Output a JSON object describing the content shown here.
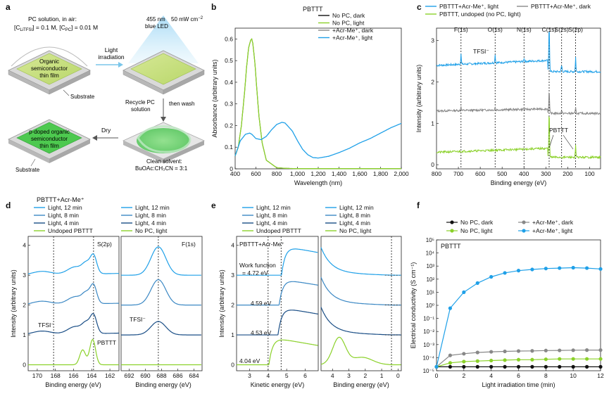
{
  "colors": {
    "light_blue": "#1fa0e8",
    "mid_blue": "#3b88c4",
    "dark_blue": "#1a4e86",
    "green": "#8bd12a",
    "gray": "#888888",
    "black": "#111111"
  },
  "panel_a": {
    "label": "a",
    "pc_solution": "PC solution, in air:",
    "pc_conc_1": "[C",
    "pc_conc_1_sub": "LiTFSI",
    "pc_conc_2": "] = 0.1 M, [C",
    "pc_conc_2_sub": "PC",
    "pc_conc_3": "] = 0.01 M",
    "led_1": "455 nm",
    "led_2": "blue LED",
    "power": "50 mW cm",
    "power_sup": "−2",
    "film_1": "Organic",
    "film_2": "semiconductor",
    "film_3": "thin film",
    "substrate": "Substrate",
    "light_1": "Light",
    "light_2": "irradiation",
    "recycle_1": "Recycle PC",
    "recycle_2": "solution",
    "then_wash": "then wash",
    "dry": "Dry",
    "pdoped_1": "p-doped organic",
    "pdoped_2": "semiconductor",
    "pdoped_3": "thin film",
    "clean_1": "Clean solvent:",
    "clean_2": "BuOAc:CH₃CN = 3:1",
    "substrate2": "Substrate"
  },
  "chart_data": [
    {
      "id": "b",
      "type": "line",
      "panel": "b",
      "title": "PBTTT",
      "xlabel": "Wavelength (nm)",
      "ylabel": "Absorbance (arbitrary units)",
      "xlim": [
        400,
        2000
      ],
      "ylim": [
        0,
        0.65
      ],
      "xticks": [
        "400",
        "600",
        "800",
        "1,000",
        "1,200",
        "1,400",
        "1,600",
        "1,800",
        "2,000"
      ],
      "yticks": [
        "0",
        "0.1",
        "0.2",
        "0.3",
        "0.4",
        "0.5",
        "0.6"
      ],
      "legend": [
        {
          "name": "No PC, dark",
          "color": "#111111"
        },
        {
          "name": "No PC, light",
          "color": "#8bd12a"
        },
        {
          "name": "+Acr-Me⁺, dark",
          "color": "#888888"
        },
        {
          "name": "+Acr-Me⁺, light",
          "color": "#1fa0e8"
        }
      ],
      "series": [
        {
          "name": "undoped",
          "color": "#8bd12a",
          "x": [
            400,
            430,
            460,
            490,
            510,
            530,
            550,
            560,
            570,
            590,
            610,
            630,
            660,
            700,
            800,
            900,
            1000,
            1200,
            1600,
            2000
          ],
          "y": [
            0.06,
            0.1,
            0.2,
            0.35,
            0.47,
            0.56,
            0.595,
            0.6,
            0.58,
            0.49,
            0.36,
            0.24,
            0.12,
            0.04,
            0.005,
            0.002,
            0.001,
            0.001,
            0.001,
            0.001
          ]
        },
        {
          "name": "+Acr-Me⁺, light",
          "color": "#1fa0e8",
          "x": [
            400,
            450,
            500,
            540,
            560,
            580,
            600,
            650,
            700,
            750,
            800,
            850,
            880,
            950,
            1000,
            1050,
            1100,
            1150,
            1200,
            1300,
            1400,
            1500,
            1600,
            1700,
            1800,
            1900,
            2000
          ],
          "y": [
            0.06,
            0.13,
            0.16,
            0.165,
            0.16,
            0.15,
            0.14,
            0.135,
            0.15,
            0.18,
            0.205,
            0.215,
            0.212,
            0.175,
            0.13,
            0.09,
            0.065,
            0.052,
            0.05,
            0.058,
            0.075,
            0.095,
            0.12,
            0.14,
            0.165,
            0.19,
            0.21
          ]
        }
      ]
    },
    {
      "id": "c",
      "type": "line",
      "panel": "c",
      "xlabel": "Binding energy (eV)",
      "ylabel": "Intensity (arbitrary units)",
      "xlim": [
        800,
        50
      ],
      "ylim": [
        -0.1,
        3.3
      ],
      "xticks": [
        "800",
        "700",
        "600",
        "500",
        "400",
        "300",
        "200",
        "100"
      ],
      "yticks": [
        "0",
        "1",
        "2",
        "3"
      ],
      "peak_labels": [
        "F(1s)",
        "O(1s)",
        "N(1s)",
        "C(1s)",
        "S(2s)",
        "S(2p)"
      ],
      "peak_positions": [
        688,
        532,
        400,
        285,
        228,
        164
      ],
      "annotations": {
        "tfsi": "TFSI⁻",
        "pbttt": "PBTTT"
      },
      "legend": [
        {
          "name": "PBTTT+Acr-Me⁺, light",
          "color": "#1fa0e8"
        },
        {
          "name": "PBTTT+Acr-Me⁺, dark",
          "color": "#888888"
        },
        {
          "name": "PBTTT, undoped (no PC, light)",
          "color": "#8bd12a"
        }
      ],
      "series": [
        {
          "name": "light",
          "color": "#1fa0e8",
          "offset": 2.4
        },
        {
          "name": "dark",
          "color": "#888888",
          "offset": 1.3
        },
        {
          "name": "undoped",
          "color": "#8bd12a",
          "offset": 0.3
        }
      ]
    },
    {
      "id": "d",
      "type": "line",
      "panel": "d",
      "subtitle": "PBTTT+Acr-Me⁺",
      "xlabel": "Binding energy (eV)",
      "ylabel": "Intensity (arbitrary units)",
      "ylim": [
        -0.2,
        4.3
      ],
      "yticks": [
        "0",
        "1",
        "2",
        "3",
        "4"
      ],
      "left_title": "S(2p)",
      "left_xlim": [
        171,
        161
      ],
      "left_xticks": [
        "170",
        "168",
        "166",
        "164",
        "162"
      ],
      "right_title": "F(1s)",
      "right_xlim": [
        693,
        683
      ],
      "right_xticks": [
        "692",
        "690",
        "688",
        "686",
        "684"
      ],
      "annotations": {
        "tfsi": "TFSI⁻",
        "tfsi2": "TFSI⁻",
        "pbttt": "PBTTT"
      },
      "legend_left": [
        {
          "name": "Light, 12 min",
          "color": "#1fa0e8"
        },
        {
          "name": "Light, 8 min",
          "color": "#3b88c4"
        },
        {
          "name": "Light, 4 min",
          "color": "#1a4e86"
        },
        {
          "name": "Undoped PBTTT",
          "color": "#8bd12a"
        }
      ],
      "legend_right": [
        {
          "name": "Light, 12 min",
          "color": "#1fa0e8"
        },
        {
          "name": "Light, 8 min",
          "color": "#3b88c4"
        },
        {
          "name": "Light, 4 min",
          "color": "#1a4e86"
        },
        {
          "name": "No PC, light",
          "color": "#8bd12a"
        }
      ]
    },
    {
      "id": "e",
      "type": "line",
      "panel": "e",
      "subtitle": "PBTTT+Acr-Me⁺",
      "ylabel": "Intensity (arbitrary units)",
      "ylim": [
        -0.2,
        4.3
      ],
      "yticks": [
        "0",
        "1",
        "2",
        "3",
        "4"
      ],
      "left_xlabel": "Kinetic energy (eV)",
      "left_xlim": [
        2.3,
        6.7
      ],
      "left_xticks": [
        "3",
        "4",
        "5",
        "6"
      ],
      "right_xlabel": "Binding energy (eV)",
      "right_xlim": [
        4.7,
        -0.2
      ],
      "right_xticks": [
        "4",
        "3",
        "2",
        "1",
        "0"
      ],
      "work_function_label": "Work function",
      "work_functions": [
        "= 4.72 eV",
        "4.59 eV",
        "4.53 eV",
        "4.04 eV"
      ],
      "legend_left": [
        {
          "name": "Light, 12 min",
          "color": "#1fa0e8"
        },
        {
          "name": "Light, 8 min",
          "color": "#3b88c4"
        },
        {
          "name": "Light, 4 min",
          "color": "#1a4e86"
        },
        {
          "name": "Undoped PBTTT",
          "color": "#8bd12a"
        }
      ],
      "legend_right": [
        {
          "name": "Light, 12 min",
          "color": "#1fa0e8"
        },
        {
          "name": "Light, 8 min",
          "color": "#3b88c4"
        },
        {
          "name": "Light, 4 min",
          "color": "#1a4e86"
        },
        {
          "name": "No PC, light",
          "color": "#8bd12a"
        }
      ]
    },
    {
      "id": "f",
      "type": "line",
      "panel": "f",
      "title": "PBTTT",
      "xlabel": "Light irradiation time (min)",
      "ylabel": "Electrical conductivity (S cm⁻¹)",
      "yscale": "log",
      "xlim": [
        0,
        12
      ],
      "ylim_exp": [
        -5,
        5
      ],
      "xticks": [
        "0",
        "2",
        "4",
        "6",
        "8",
        "10",
        "12"
      ],
      "yticks": [
        "10⁻⁵",
        "10⁻⁴",
        "10⁻³",
        "10⁻²",
        "10⁻¹",
        "10⁰",
        "10¹",
        "10²",
        "10³",
        "10⁴",
        "10⁵"
      ],
      "legend": [
        {
          "name": "No PC, dark",
          "color": "#111111"
        },
        {
          "name": "+Acr-Me⁺, dark",
          "color": "#888888"
        },
        {
          "name": "No PC, light",
          "color": "#8bd12a"
        },
        {
          "name": "+Acr-Me⁺, light",
          "color": "#1fa0e8"
        }
      ],
      "x": [
        0,
        1,
        2,
        3,
        4,
        5,
        6,
        7,
        8,
        9,
        10,
        11,
        12
      ],
      "series": [
        {
          "name": "No PC, dark",
          "color": "#111111",
          "values": [
            2e-05,
            2e-05,
            2e-05,
            2e-05,
            2e-05,
            2e-05,
            2e-05,
            2e-05,
            2e-05,
            2e-05,
            2e-05,
            2e-05,
            2e-05
          ]
        },
        {
          "name": "+Acr-Me⁺, dark",
          "color": "#888888",
          "values": [
            2e-05,
            0.00015,
            0.0002,
            0.00025,
            0.00028,
            0.0003,
            0.00032,
            0.00033,
            0.00035,
            0.00036,
            0.00037,
            0.00038,
            0.00038
          ]
        },
        {
          "name": "No PC, light",
          "color": "#8bd12a",
          "values": [
            2e-05,
            4e-05,
            5e-05,
            5.5e-05,
            6e-05,
            6.5e-05,
            7e-05,
            7e-05,
            7.5e-05,
            8e-05,
            8e-05,
            8e-05,
            8e-05
          ]
        },
        {
          "name": "+Acr-Me⁺, light",
          "color": "#1fa0e8",
          "values": [
            2e-05,
            0.6,
            10,
            50,
            150,
            300,
            450,
            550,
            650,
            700,
            750,
            700,
            600
          ]
        }
      ]
    }
  ]
}
